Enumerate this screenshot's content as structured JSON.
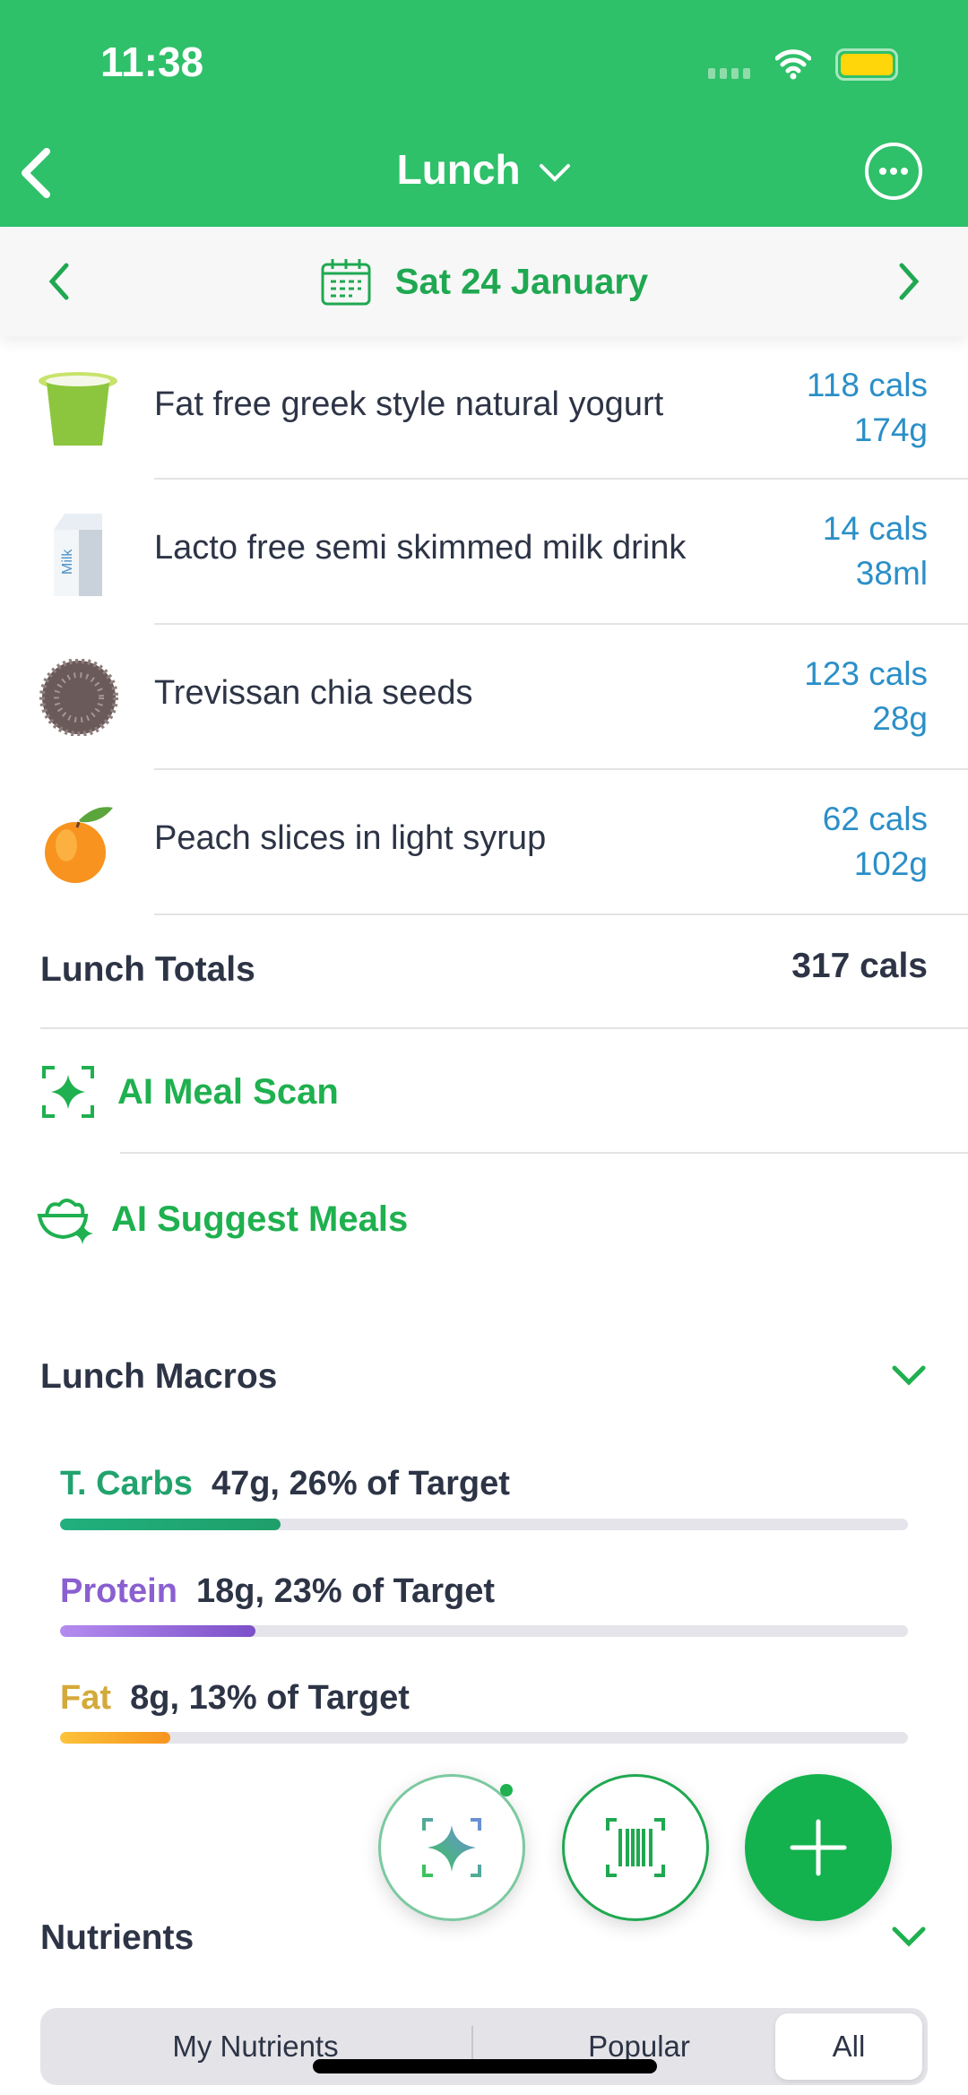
{
  "status_bar": {
    "time": "11:38"
  },
  "header": {
    "title": "Lunch",
    "back_icon": "chevron-left-icon",
    "menu_icon": "ellipsis-circle-icon"
  },
  "date_nav": {
    "date": "Sat 24 January"
  },
  "foods": [
    {
      "name": "Fat free greek style natural yogurt",
      "cals": "118 cals",
      "amount": "174g",
      "icon": "yogurt-icon"
    },
    {
      "name": "Lacto free semi skimmed milk drink",
      "cals": "14 cals",
      "amount": "38ml",
      "icon": "milk-carton-icon"
    },
    {
      "name": "Trevissan chia seeds",
      "cals": "123 cals",
      "amount": "28g",
      "icon": "chia-seeds-icon"
    },
    {
      "name": "Peach slices in light syrup",
      "cals": "62 cals",
      "amount": "102g",
      "icon": "peach-icon"
    }
  ],
  "totals": {
    "label": "Lunch Totals",
    "value": "317 cals"
  },
  "actions": {
    "ai_scan": "AI Meal Scan",
    "ai_suggest": "AI Suggest Meals"
  },
  "macros": {
    "title": "Lunch Macros",
    "items": [
      {
        "name": "T. Carbs",
        "value": "47g, 26% of Target",
        "percent": 26,
        "color": "#22b07a"
      },
      {
        "name": "Protein",
        "value": "18g, 23% of Target",
        "percent": 23,
        "color": "#8a5fd0"
      },
      {
        "name": "Fat",
        "value": "8g, 13% of Target",
        "percent": 13,
        "color": "#d4a93a"
      }
    ]
  },
  "nutrients": {
    "title": "Nutrients",
    "tabs": [
      "My Nutrients",
      "Popular",
      "All"
    ],
    "selected": "All"
  },
  "colors": {
    "brand": "#2fc06a",
    "link": "#1fb04f",
    "calories": "#2b8fc7"
  }
}
